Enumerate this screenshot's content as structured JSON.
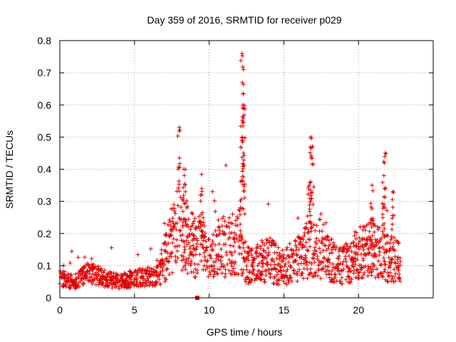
{
  "chart_data": {
    "type": "scatter",
    "title": "Day 359 of 2016, SRMTID for receiver p029",
    "xlabel": "GPS time / hours",
    "ylabel": "SRMTID / TECUs",
    "xlim": [
      0,
      25
    ],
    "ylim": [
      0,
      0.8
    ],
    "grid": true,
    "marker": "plus",
    "series_color": "#e00000",
    "xticks": [
      0,
      5,
      10,
      15,
      20
    ],
    "xtick_labels": [
      "0",
      "5",
      "10",
      "15",
      "20"
    ],
    "yticks": [
      0,
      0.1,
      0.2,
      0.3,
      0.4,
      0.5,
      0.6,
      0.7,
      0.8
    ],
    "ytick_labels": [
      "0",
      "0.1",
      "0.2",
      "0.3",
      "0.4",
      "0.5",
      "0.6",
      "0.7",
      "0.8"
    ],
    "x_range_of_samples": [
      0,
      22.8
    ],
    "envelope": [
      {
        "x": 0.0,
        "y": 0.06
      },
      {
        "x": 1.0,
        "y": 0.05
      },
      {
        "x": 2.0,
        "y": 0.08
      },
      {
        "x": 3.0,
        "y": 0.06
      },
      {
        "x": 4.0,
        "y": 0.05
      },
      {
        "x": 5.0,
        "y": 0.06
      },
      {
        "x": 6.5,
        "y": 0.07
      },
      {
        "x": 7.0,
        "y": 0.12
      },
      {
        "x": 7.5,
        "y": 0.18
      },
      {
        "x": 8.0,
        "y": 0.22
      },
      {
        "x": 9.0,
        "y": 0.16
      },
      {
        "x": 10.0,
        "y": 0.14
      },
      {
        "x": 11.0,
        "y": 0.16
      },
      {
        "x": 12.0,
        "y": 0.18
      },
      {
        "x": 12.5,
        "y": 0.1
      },
      {
        "x": 13.0,
        "y": 0.1
      },
      {
        "x": 14.0,
        "y": 0.12
      },
      {
        "x": 15.0,
        "y": 0.09
      },
      {
        "x": 16.0,
        "y": 0.13
      },
      {
        "x": 17.0,
        "y": 0.16
      },
      {
        "x": 18.0,
        "y": 0.12
      },
      {
        "x": 19.0,
        "y": 0.1
      },
      {
        "x": 20.0,
        "y": 0.14
      },
      {
        "x": 21.0,
        "y": 0.15
      },
      {
        "x": 22.0,
        "y": 0.12
      },
      {
        "x": 22.8,
        "y": 0.11
      }
    ],
    "spikes": [
      {
        "x": 8.0,
        "y": 0.53
      },
      {
        "x": 8.3,
        "y": 0.4
      },
      {
        "x": 9.5,
        "y": 0.34
      },
      {
        "x": 12.2,
        "y": 0.76
      },
      {
        "x": 12.3,
        "y": 0.71
      },
      {
        "x": 12.25,
        "y": 0.6
      },
      {
        "x": 12.2,
        "y": 0.5
      },
      {
        "x": 12.3,
        "y": 0.45
      },
      {
        "x": 16.8,
        "y": 0.5
      },
      {
        "x": 16.9,
        "y": 0.47
      },
      {
        "x": 16.7,
        "y": 0.35
      },
      {
        "x": 20.9,
        "y": 0.35
      },
      {
        "x": 21.8,
        "y": 0.45
      },
      {
        "x": 21.7,
        "y": 0.38
      },
      {
        "x": 22.3,
        "y": 0.33
      }
    ],
    "outliers": [
      {
        "x": 9.2,
        "y": 0.0
      }
    ]
  }
}
